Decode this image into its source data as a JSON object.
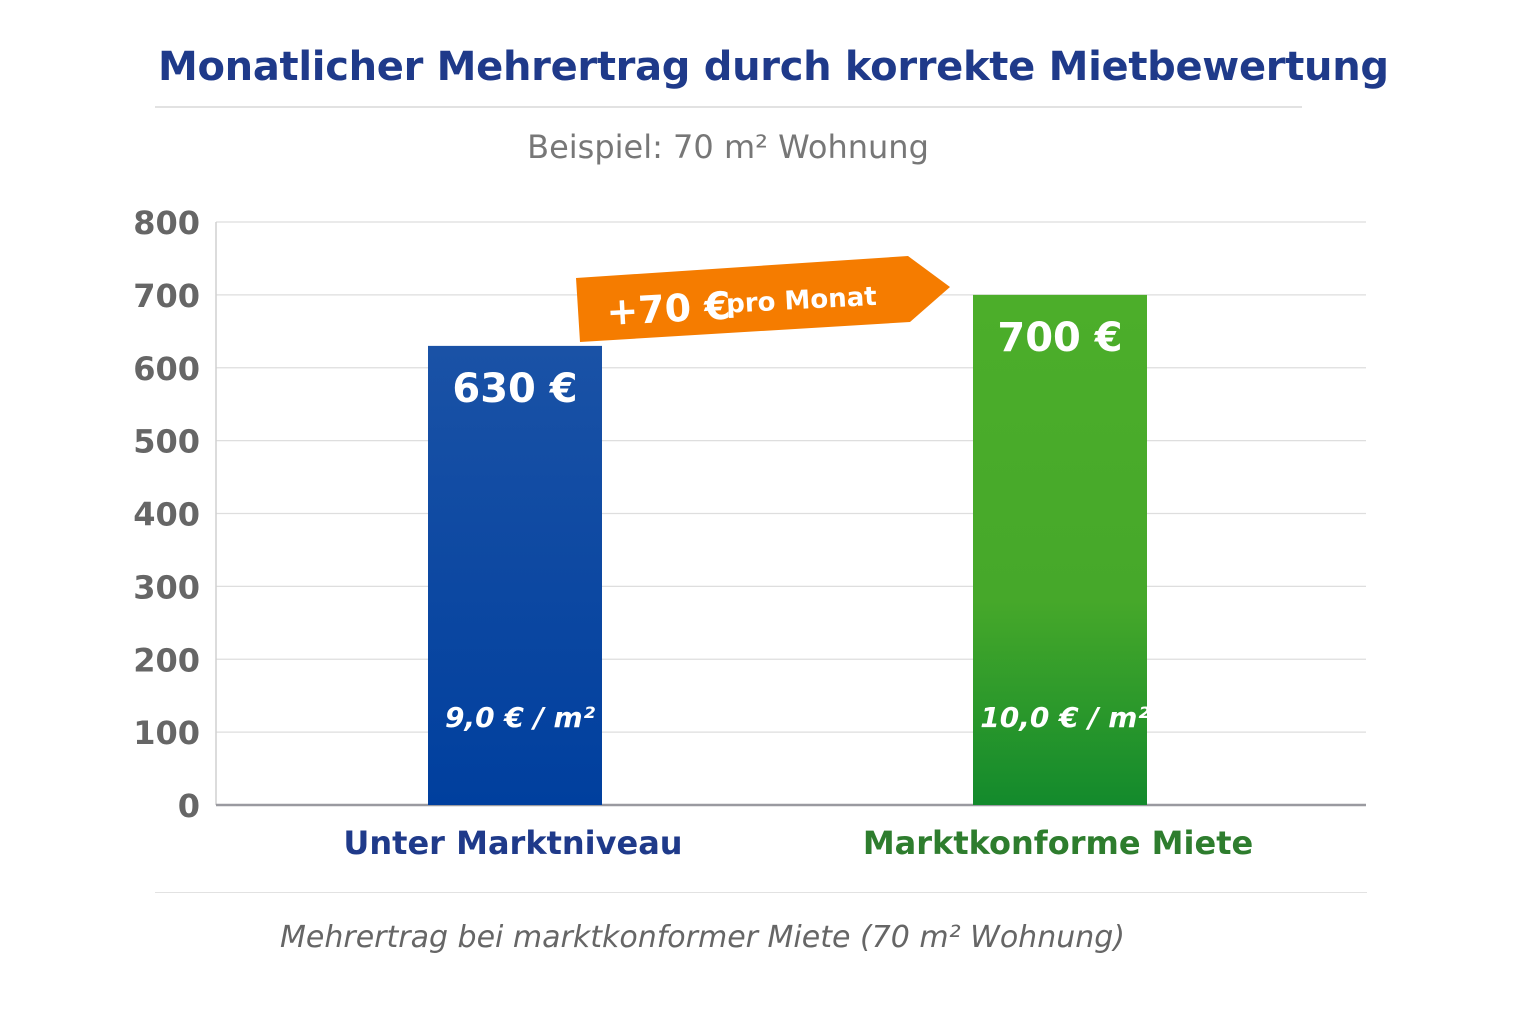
{
  "chart_data": {
    "type": "bar",
    "title": "Monatlicher Mehrertrag durch korrekte Mietbewertung",
    "subtitle": "Beispiel: 70 m² Wohnung",
    "categories": [
      "Unter Marktniveau",
      "Marktkonforme Miete"
    ],
    "values": [
      630,
      700
    ],
    "value_labels": [
      "630 €",
      "700 €"
    ],
    "sub_labels": [
      "9,0 € / m²",
      "10,0 € / m²"
    ],
    "colors": [
      "#0f4aa0",
      "#3aa02a"
    ],
    "category_colors": [
      "#1f3a8a",
      "#2e7d2e"
    ],
    "yticks": [
      0,
      100,
      200,
      300,
      400,
      500,
      600,
      700,
      800
    ],
    "ylim": [
      0,
      800
    ],
    "grid": true,
    "xlabel": "",
    "ylabel": "",
    "annotation": {
      "main": "+70 €",
      "suffix": "pro Monat",
      "color": "#f57c00"
    },
    "caption": "Mehrertrag bei marktkonformer Miete (70 m² Wohnung)"
  }
}
